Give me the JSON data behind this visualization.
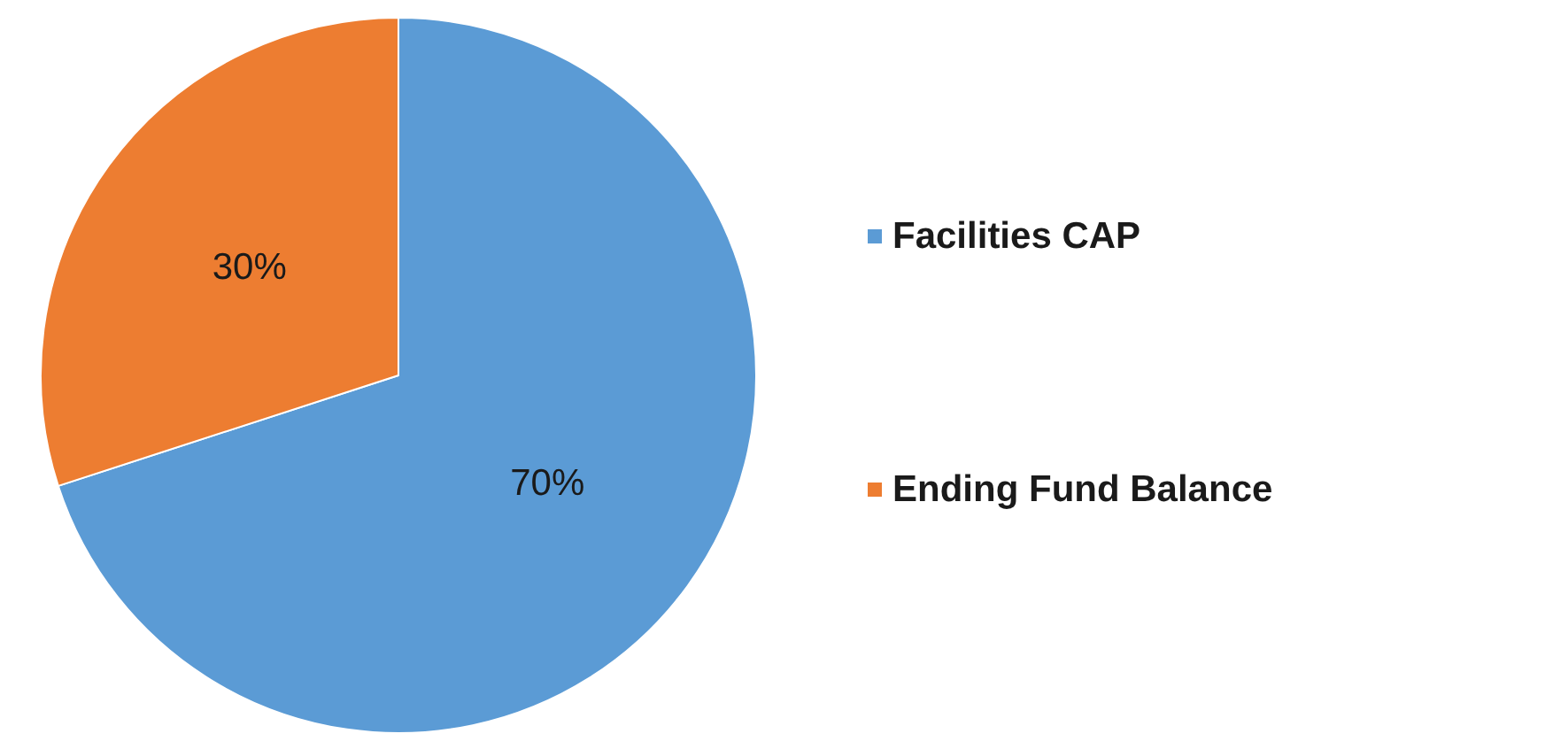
{
  "chart_data": {
    "type": "pie",
    "categories": [
      "Facilities CAP",
      "Ending Fund Balance"
    ],
    "values": [
      70,
      30
    ],
    "colors": [
      "#5b9bd5",
      "#ed7d31"
    ],
    "value_labels": [
      "70%",
      "30%"
    ],
    "legend": "right"
  }
}
